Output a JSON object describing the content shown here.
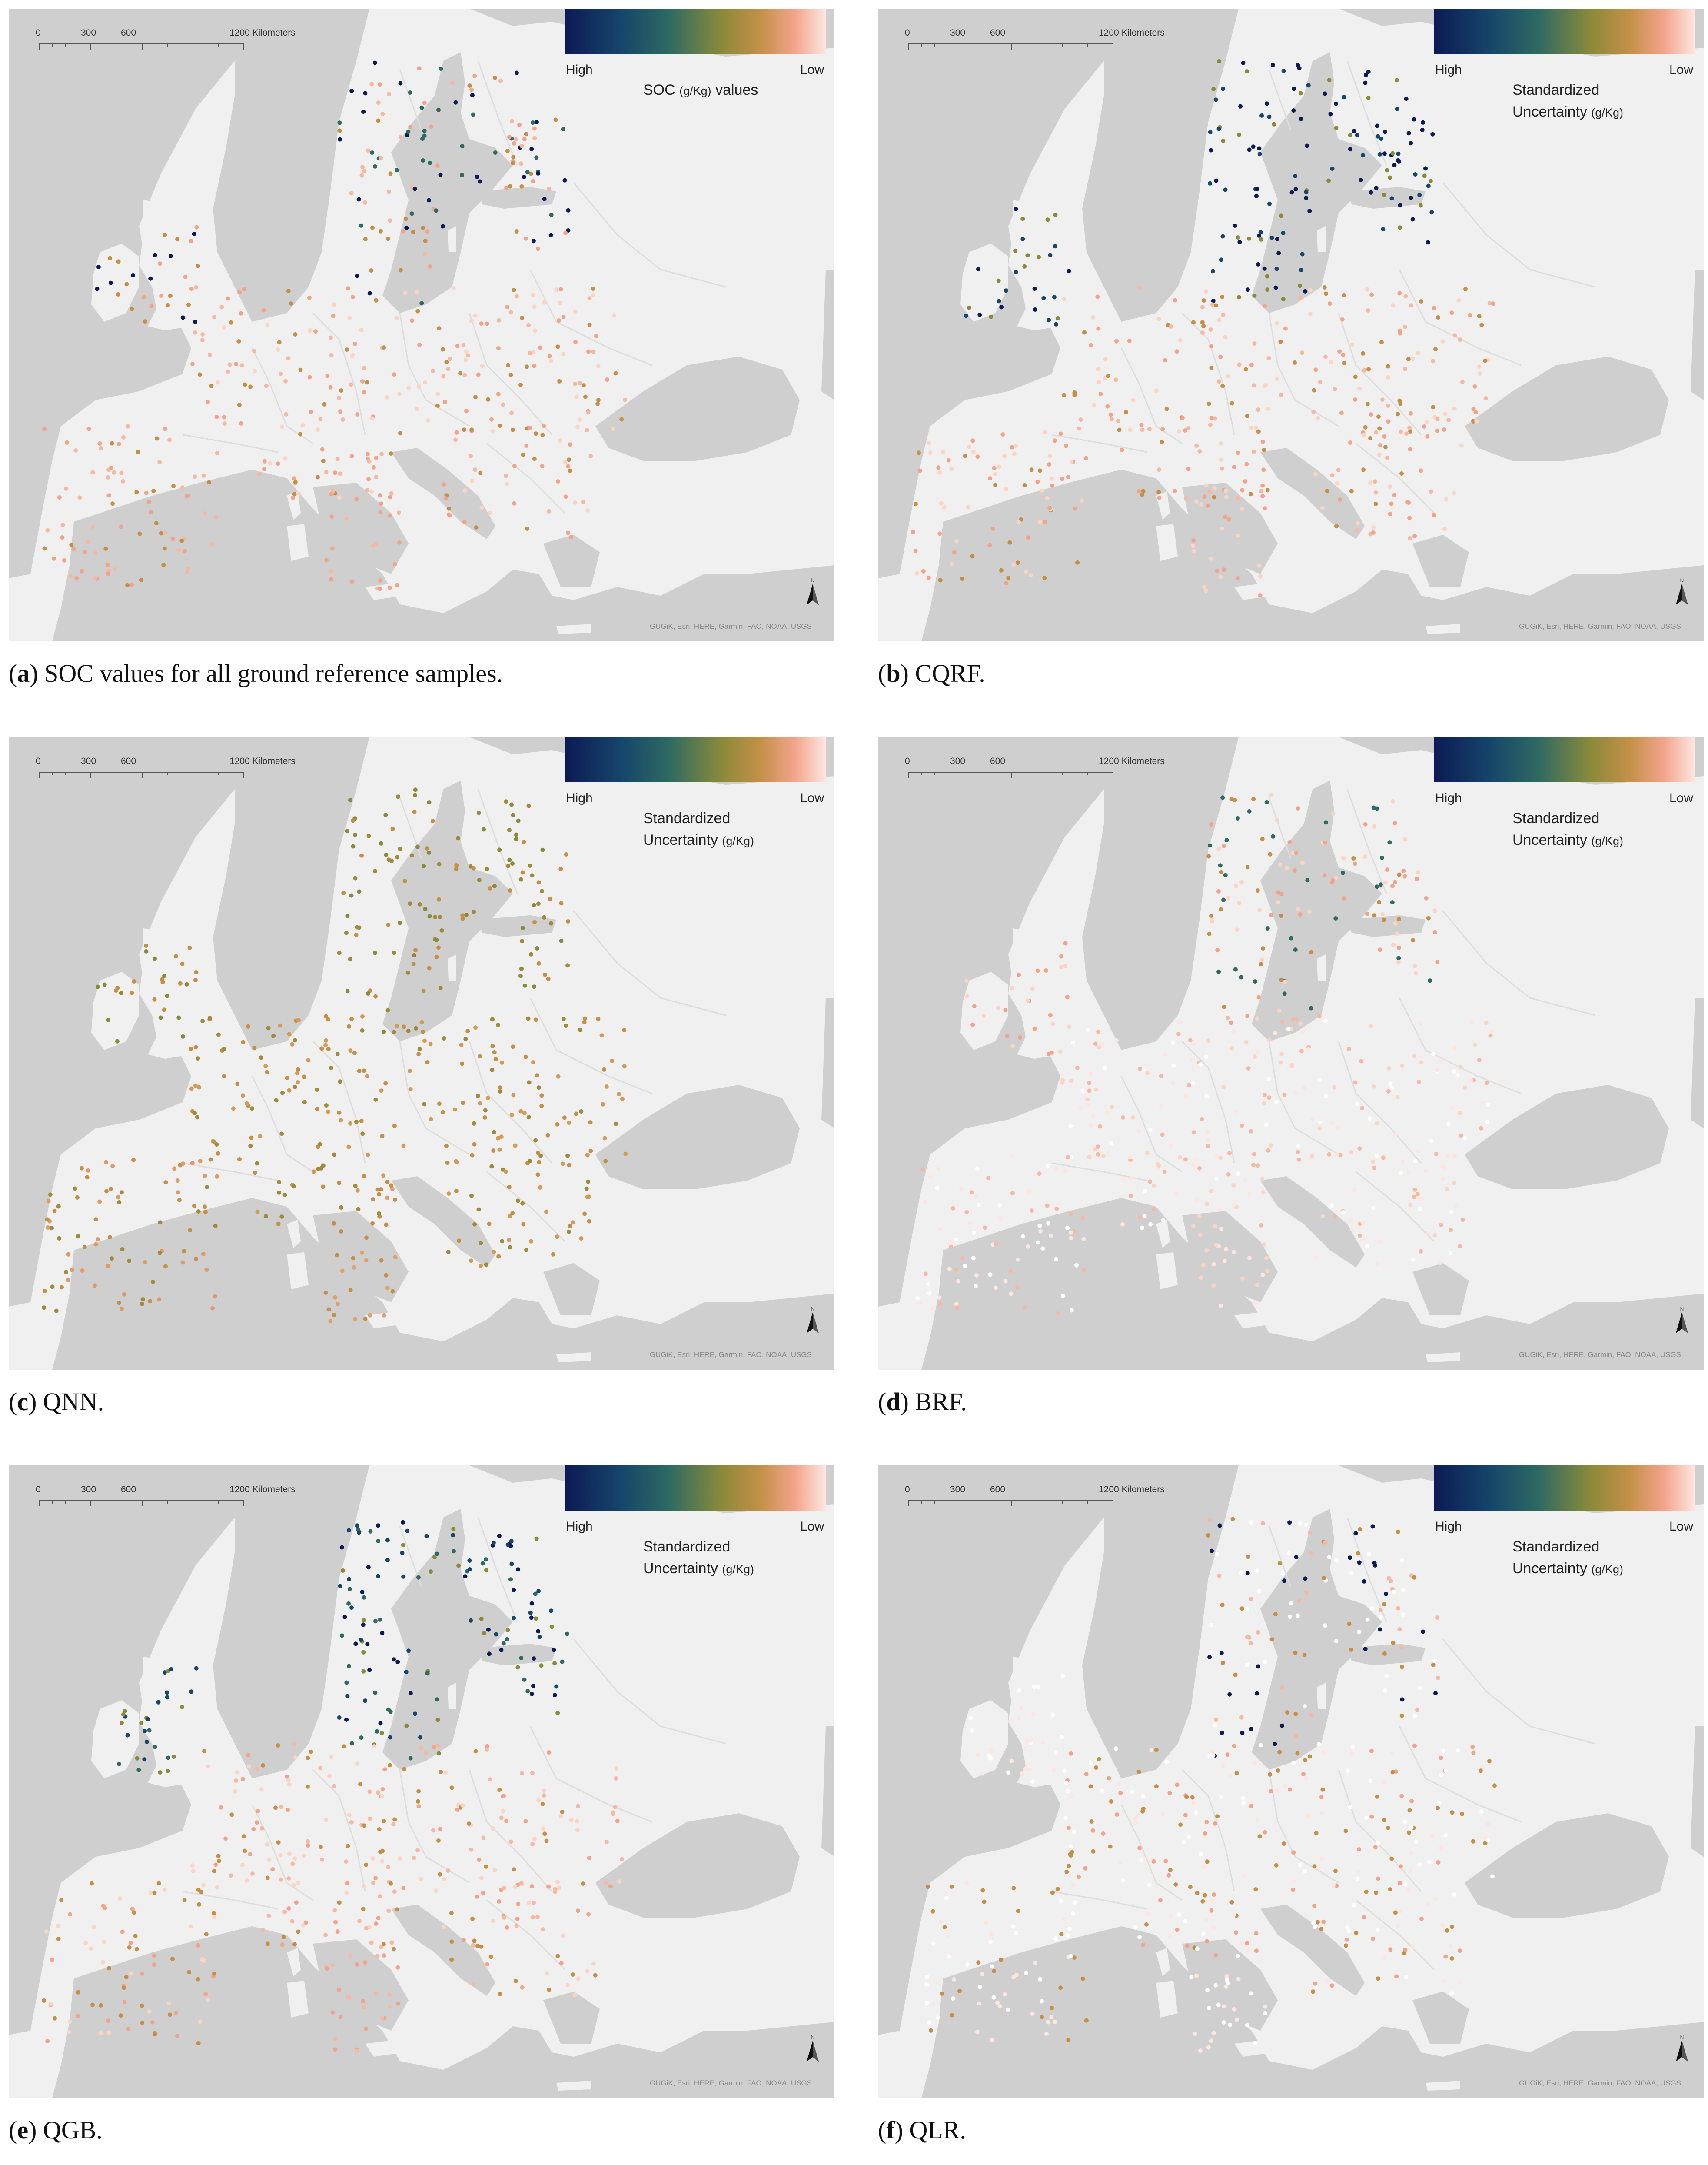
{
  "scale_bar": {
    "labels": [
      "0",
      "300",
      "600",
      "1200 Kilometers"
    ]
  },
  "legend_common": {
    "high": "High",
    "low": "Low"
  },
  "attribution": "GUGiK, Esri, HERE, Garmin, FAO, NOAA, USGS",
  "colors": {
    "sea": "#cfcfcf",
    "land": "#f0f0f0",
    "ramp": [
      "#0c1a55",
      "#16466a",
      "#2e6a62",
      "#8a8a3a",
      "#c49048",
      "#f2a48a",
      "#fde6e0"
    ]
  },
  "panels": [
    {
      "id": "a",
      "letter": "a",
      "caption_text": " SOC values for all ground reference samples.",
      "legend_title_1": "SOC ",
      "legend_title_unit": "(g/Kg)",
      "legend_title_2": " values",
      "legend_title_line2": ""
    },
    {
      "id": "b",
      "letter": "b",
      "caption_text": " CQRF.",
      "legend_title_1": "Standardized",
      "legend_title_unit": "",
      "legend_title_2": "",
      "legend_title_line2": "Uncertainty",
      "legend_title_line2_unit": "(g/Kg)"
    },
    {
      "id": "c",
      "letter": "c",
      "caption_text": " QNN.",
      "legend_title_1": "Standardized",
      "legend_title_unit": "",
      "legend_title_2": "",
      "legend_title_line2": "Uncertainty",
      "legend_title_line2_unit": "(g/Kg)"
    },
    {
      "id": "d",
      "letter": "d",
      "caption_text": " BRF.",
      "legend_title_1": "Standardized",
      "legend_title_unit": "",
      "legend_title_2": "",
      "legend_title_line2": "Uncertainty",
      "legend_title_line2_unit": "(g/Kg)"
    },
    {
      "id": "e",
      "letter": "e",
      "caption_text": " QGB.",
      "legend_title_1": "Standardized",
      "legend_title_unit": "",
      "legend_title_2": "",
      "legend_title_line2": "Uncertainty",
      "legend_title_line2_unit": "(g/Kg)"
    },
    {
      "id": "f",
      "letter": "f",
      "caption_text": " QLR.",
      "legend_title_1": "Standardized",
      "legend_title_unit": "",
      "legend_title_2": "",
      "legend_title_line2": "Uncertainty",
      "legend_title_line2_unit": "(g/Kg)"
    }
  ]
}
